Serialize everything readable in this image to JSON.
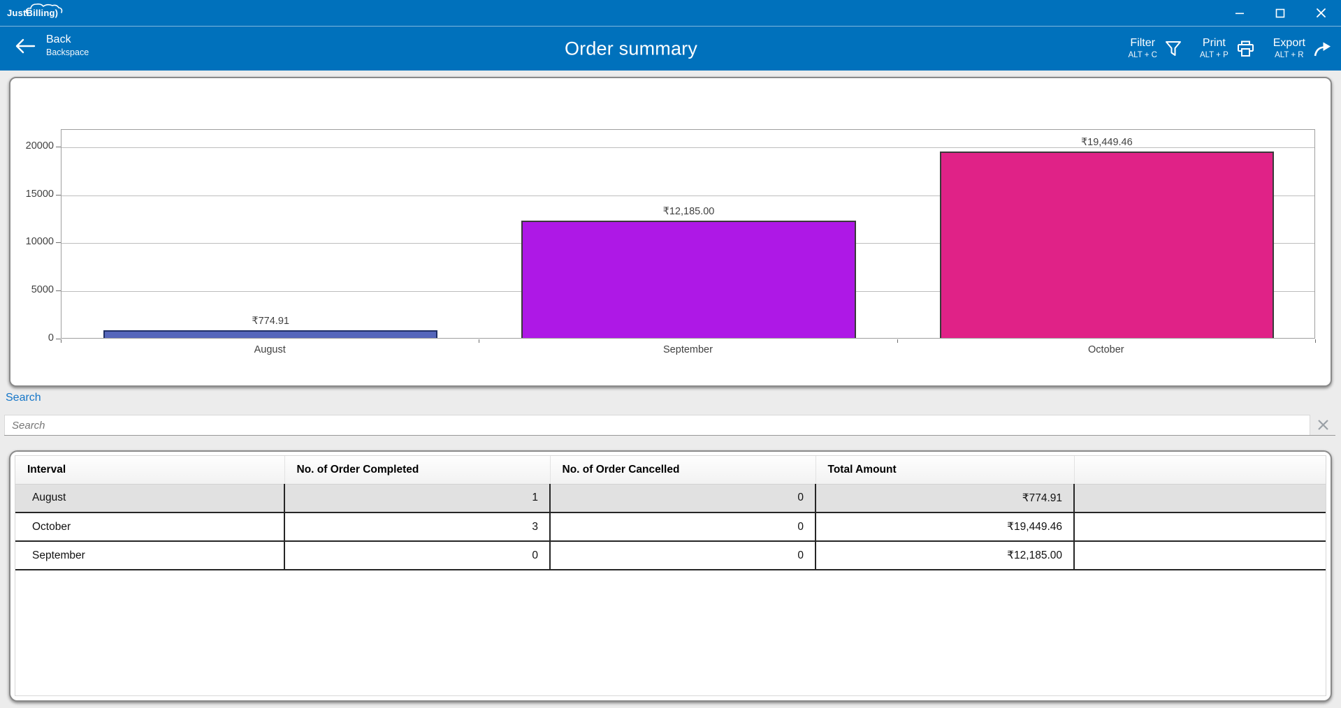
{
  "window": {
    "logo": "JustBilling",
    "controls": {
      "minimize_icon": "minimize",
      "maximize_icon": "maximize",
      "close_icon": "close"
    }
  },
  "appbar": {
    "back": {
      "label": "Back",
      "shortcut": "Backspace",
      "icon": "back-arrow"
    },
    "title": "Order summary",
    "commands": [
      {
        "label": "Filter",
        "shortcut": "ALT + C",
        "icon": "filter-funnel"
      },
      {
        "label": "Print",
        "shortcut": "ALT + P",
        "icon": "printer"
      },
      {
        "label": "Export",
        "shortcut": "ALT + R",
        "icon": "share-arrow"
      }
    ]
  },
  "chart_data": {
    "type": "bar",
    "title": "",
    "xlabel": "",
    "ylabel": "",
    "categories": [
      "August",
      "September",
      "October"
    ],
    "values": [
      774.91,
      12185.0,
      19449.46
    ],
    "value_labels": [
      "₹774.91",
      "₹12,185.00",
      "₹19,449.46"
    ],
    "bar_colors": [
      "#5566BB",
      "#AE18E6",
      "#E02287"
    ],
    "bar_border_colors": [
      "#1F2F66",
      "#3A3A3A",
      "#3A3A3A"
    ],
    "yticks": [
      0,
      5000,
      10000,
      15000,
      20000
    ],
    "ylim": [
      0,
      21818
    ],
    "grid": true,
    "legend": false
  },
  "search": {
    "label": "Search",
    "placeholder": "Search"
  },
  "table": {
    "columns": [
      "Interval",
      "No. of Order Completed",
      "No. of Order Cancelled",
      "Total Amount",
      ""
    ],
    "rows": [
      {
        "interval": "August",
        "completed": "1",
        "cancelled": "0",
        "total": "₹774.91",
        "selected": true
      },
      {
        "interval": "October",
        "completed": "3",
        "cancelled": "0",
        "total": "₹19,449.46",
        "selected": false
      },
      {
        "interval": "September",
        "completed": "0",
        "cancelled": "0",
        "total": "₹12,185.00",
        "selected": false
      }
    ]
  },
  "colors": {
    "accent_blue": "#0071BC",
    "search_label_blue": "#1576C8",
    "selected_row": "#E1E1E1",
    "page_background": "#ECECEC"
  }
}
